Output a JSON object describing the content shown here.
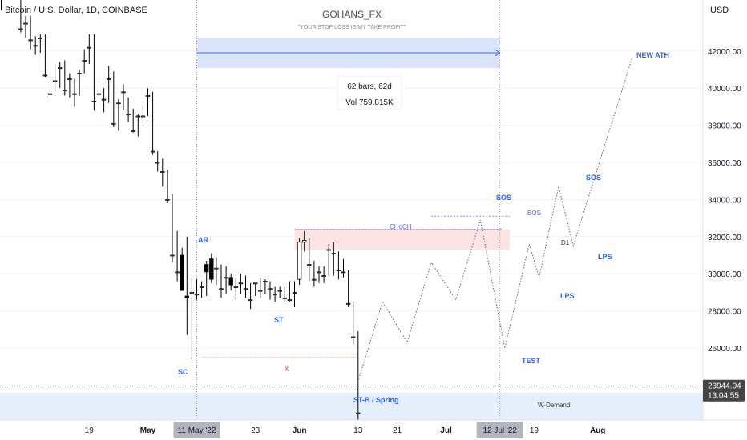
{
  "header": {
    "symbol_title": "Bitcoin / U.S. Dollar, 1D, COINBASE",
    "author": "GOHANS_FX",
    "slogan": "\"YOUR STOP LOSS IS MY TAKE PROFIT\"",
    "currency": "USD"
  },
  "measure": {
    "bars_label": "62 bars, 62d",
    "vol_label": "Vol 759.815K"
  },
  "price_tag": {
    "price": "23944.04",
    "countdown": "13:04:55"
  },
  "annotations": {
    "sc": "SC",
    "ar": "AR",
    "st": "ST",
    "x_mark": "X",
    "choch": "CHoCH",
    "bos": "BOS",
    "d1": "D1",
    "st_b_spring": "ST-B / Spring",
    "sos_1": "SOS",
    "test": "TEST",
    "lps_1": "LPS",
    "sos_2": "SOS",
    "lps_2": "LPS",
    "new_ath": "NEW ATH",
    "w_demand": "W-Demand"
  },
  "chart_data": {
    "type": "candlestick",
    "title": "Bitcoin / U.S. Dollar, 1D, COINBASE",
    "y_unit": "USD",
    "ylim": [
      23100,
      45000
    ],
    "y_ticks": [
      26000,
      28000,
      30000,
      32000,
      34000,
      36000,
      38000,
      40000,
      42000
    ],
    "y_tick_labels": [
      "26000.00",
      "28000.00",
      "30000.00",
      "32000.00",
      "34000.00",
      "36000.00",
      "38000.00",
      "40000.00",
      "42000.00"
    ],
    "x_ticks": [
      {
        "label": "19",
        "date": "2022-04-19"
      },
      {
        "label": "May",
        "date": "2022-05-01"
      },
      {
        "label": "11 May '22",
        "date": "2022-05-11",
        "highlight": true
      },
      {
        "label": "23",
        "date": "2022-05-23"
      },
      {
        "label": "Jun",
        "date": "2022-06-01"
      },
      {
        "label": "13",
        "date": "2022-06-13"
      },
      {
        "label": "21",
        "date": "2022-06-21"
      },
      {
        "label": "Jul",
        "date": "2022-07-01"
      },
      {
        "label": "12 Jul '22",
        "date": "2022-07-12",
        "highlight": true
      },
      {
        "label": "19",
        "date": "2022-07-19"
      },
      {
        "label": "Aug",
        "date": "2022-08-01"
      }
    ],
    "candles": {
      "start_date": "2022-04-01",
      "ohlc": [
        [
          45500,
          46700,
          44200,
          45500
        ],
        [
          46400,
          46900,
          45200,
          46400
        ],
        [
          46600,
          47000,
          45800,
          46600
        ],
        [
          45500,
          46600,
          45100,
          45500
        ],
        [
          43200,
          45500,
          43000,
          43200
        ],
        [
          43500,
          43900,
          42700,
          43500
        ],
        [
          42600,
          43900,
          42100,
          42600
        ],
        [
          42300,
          42800,
          41800,
          42300
        ],
        [
          42700,
          42900,
          41900,
          42700
        ],
        [
          40700,
          42900,
          40600,
          40700
        ],
        [
          39700,
          40500,
          39300,
          39700
        ],
        [
          40400,
          41300,
          39800,
          40400
        ],
        [
          41100,
          41400,
          40000,
          41100
        ],
        [
          39900,
          41500,
          39600,
          39900
        ],
        [
          40500,
          40800,
          39500,
          40500
        ],
        [
          39700,
          40500,
          39000,
          39700
        ],
        [
          40800,
          41000,
          39600,
          40800
        ],
        [
          41500,
          42100,
          40800,
          41500
        ],
        [
          42200,
          42900,
          41300,
          42200
        ],
        [
          39300,
          42900,
          38800,
          39300
        ],
        [
          39700,
          40600,
          38200,
          39700
        ],
        [
          39400,
          40000,
          38700,
          39400
        ],
        [
          40500,
          41200,
          39200,
          40500
        ],
        [
          38100,
          40900,
          37900,
          38100
        ],
        [
          39200,
          39400,
          37700,
          39200
        ],
        [
          39800,
          40200,
          38800,
          39800
        ],
        [
          38600,
          39500,
          38200,
          38600
        ],
        [
          37700,
          38900,
          37600,
          37700
        ],
        [
          38500,
          38600,
          37400,
          38500
        ],
        [
          38500,
          39100,
          38100,
          38500
        ],
        [
          39600,
          40000,
          38500,
          39600
        ],
        [
          36600,
          39800,
          36400,
          36600
        ],
        [
          36000,
          36600,
          35500,
          36000
        ],
        [
          35500,
          36200,
          34700,
          35500
        ],
        [
          34000,
          35600,
          33800,
          34000
        ],
        [
          31000,
          34300,
          30600,
          31000
        ],
        [
          30100,
          32300,
          29600,
          30100
        ],
        [
          31000,
          31400,
          29100,
          29100
        ],
        [
          28800,
          32000,
          26700,
          28700
        ],
        [
          29000,
          29800,
          25400,
          29000
        ],
        [
          28900,
          29700,
          28600,
          28900
        ],
        [
          29300,
          29600,
          28700,
          29300
        ],
        [
          30500,
          30700,
          28800,
          30100
        ],
        [
          30800,
          31100,
          29500,
          29700
        ],
        [
          30300,
          30900,
          29400,
          30300
        ],
        [
          29200,
          30500,
          28700,
          29200
        ],
        [
          29800,
          30400,
          28900,
          29800
        ],
        [
          29800,
          30000,
          29100,
          29400
        ],
        [
          29300,
          29800,
          28600,
          29300
        ],
        [
          29500,
          30000,
          28900,
          29500
        ],
        [
          29200,
          29900,
          28700,
          29200
        ],
        [
          28600,
          29500,
          28100,
          28600
        ],
        [
          29500,
          29500,
          28800,
          29500
        ],
        [
          29100,
          29800,
          28700,
          29100
        ],
        [
          29600,
          29700,
          28900,
          29600
        ],
        [
          29200,
          29600,
          28600,
          29200
        ],
        [
          28900,
          29300,
          28500,
          28900
        ],
        [
          29100,
          29300,
          28700,
          29100
        ],
        [
          28700,
          29300,
          28500,
          28700
        ],
        [
          28600,
          29600,
          28500,
          28600
        ],
        [
          29000,
          29600,
          28200,
          29000
        ],
        [
          29700,
          31900,
          29400,
          31700
        ],
        [
          31700,
          32300,
          31200,
          31800
        ],
        [
          30500,
          31900,
          29600,
          30500
        ],
        [
          29700,
          30700,
          29300,
          29700
        ],
        [
          30100,
          30400,
          29500,
          30100
        ],
        [
          29900,
          30400,
          29500,
          29900
        ],
        [
          31300,
          31600,
          29900,
          31300
        ],
        [
          31100,
          31700,
          29900,
          31100
        ],
        [
          30200,
          31200,
          29700,
          30200
        ],
        [
          30100,
          30800,
          29800,
          30100
        ],
        [
          28400,
          30200,
          28200,
          28400
        ],
        [
          26600,
          28500,
          26200,
          26600
        ],
        [
          22500,
          26900,
          21900,
          22500
        ]
      ]
    },
    "levels": [
      {
        "name": "SC low",
        "value": 25500,
        "from": "2022-05-12",
        "to": "2022-06-13"
      },
      {
        "name": "BOS",
        "value": 33100,
        "from": "2022-06-28",
        "to": "2022-07-14"
      },
      {
        "name": "current price",
        "value": 23944.04
      }
    ],
    "zones": [
      {
        "name": "supply",
        "low": 31300,
        "high": 32400,
        "from": "2022-05-31",
        "to": "2022-07-14"
      },
      {
        "name": "W-Demand",
        "low": 21800,
        "high": 23600
      }
    ],
    "measure_range": {
      "from": "2022-05-11",
      "to": "2022-07-12",
      "bars": 62
    },
    "projection_path": [
      {
        "date": "2022-06-13",
        "price": 24200
      },
      {
        "date": "2022-06-18",
        "price": 28500
      },
      {
        "date": "2022-06-23",
        "price": 26300
      },
      {
        "date": "2022-06-28",
        "price": 30600
      },
      {
        "date": "2022-07-03",
        "price": 28600
      },
      {
        "date": "2022-07-08",
        "price": 32900
      },
      {
        "date": "2022-07-13",
        "price": 26000
      },
      {
        "date": "2022-07-18",
        "price": 31600
      },
      {
        "date": "2022-07-20",
        "price": 29800
      },
      {
        "date": "2022-07-24",
        "price": 34700
      },
      {
        "date": "2022-07-27",
        "price": 31500
      },
      {
        "date": "2022-08-08",
        "price": 41600
      }
    ]
  },
  "colors": {
    "bull_candle": "#ffffff",
    "bear_candle": "#000000",
    "label_blue": "#2962ff",
    "measure_fill": "#dbe4fd",
    "supply_fill": "#fde3e3",
    "demand_fill": "#e5eefb",
    "x_mark": "#e53935",
    "price_tag": "#444444",
    "axis_highlight": "#b2b5be"
  }
}
